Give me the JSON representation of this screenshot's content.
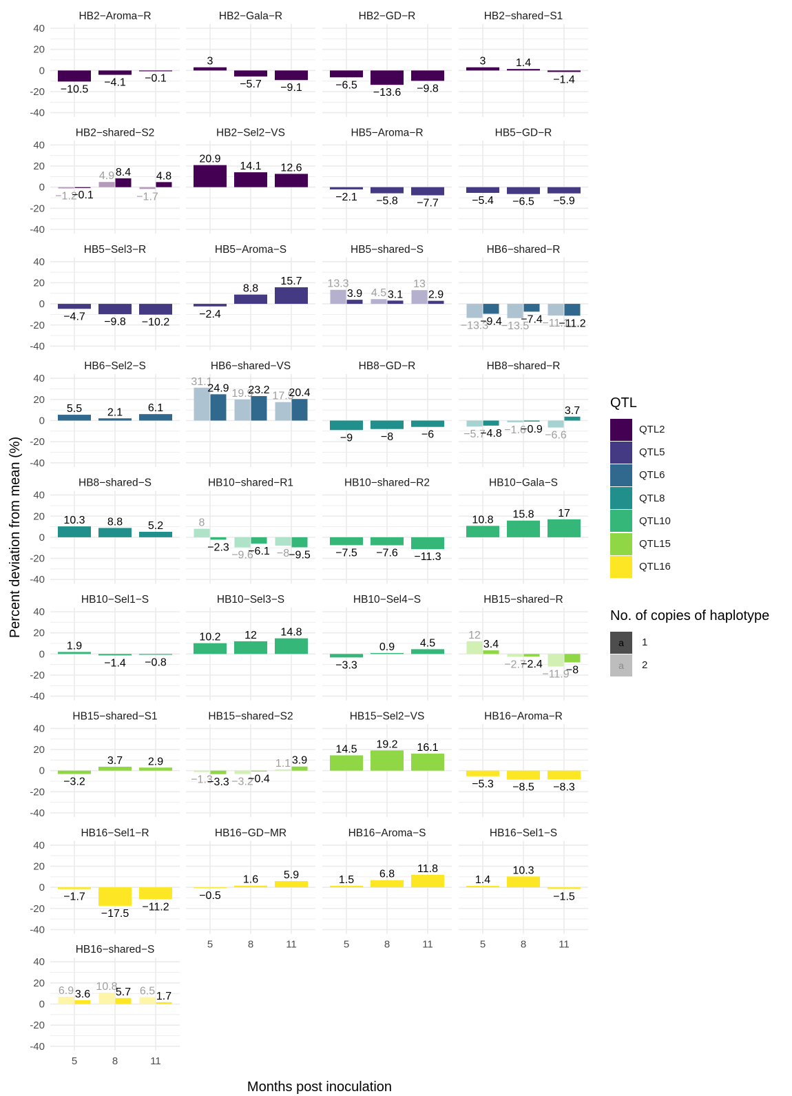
{
  "colors": {
    "QTL2": "#440154",
    "QTL5": "#443A83",
    "QTL6": "#31688E",
    "QTL8": "#21908C",
    "QTL10": "#35B779",
    "QTL15": "#8FD744",
    "QTL16": "#FDE725"
  },
  "legend": {
    "title": "QTL",
    "items": [
      "QTL2",
      "QTL5",
      "QTL6",
      "QTL8",
      "QTL10",
      "QTL15",
      "QTL16"
    ],
    "copies_title": "No. of copies of haplotype",
    "copies": [
      {
        "key": "1",
        "glyph": "a"
      },
      {
        "key": "2",
        "glyph": "a"
      }
    ]
  },
  "chart_data": {
    "type": "bar",
    "xlabel": "Months post inoculation",
    "ylabel": "Percent deviation from mean (%)",
    "ylim": [
      -40,
      40
    ],
    "yticks": [
      -40,
      -20,
      0,
      20,
      40
    ],
    "categories": [
      "5",
      "8",
      "11"
    ],
    "grid": true,
    "legend_position": "right",
    "panels": [
      {
        "title": "HB2−Aroma−R",
        "qtl": "QTL2",
        "c1": [
          -10.5,
          -4.1,
          -0.1
        ]
      },
      {
        "title": "HB2−Gala−R",
        "qtl": "QTL2",
        "c1": [
          3,
          -5.7,
          -9.1
        ]
      },
      {
        "title": "HB2−GD−R",
        "qtl": "QTL2",
        "c1": [
          -6.5,
          -13.6,
          -9.8
        ]
      },
      {
        "title": "HB2−shared−S1",
        "qtl": "QTL2",
        "c1": [
          3,
          1.4,
          -1.4
        ]
      },
      {
        "title": "HB2−shared−S2",
        "qtl": "QTL2",
        "c1": [
          -0.1,
          8.4,
          4.8
        ],
        "c2": [
          -1.2,
          4.9,
          -1.7
        ]
      },
      {
        "title": "HB2−Sel2−VS",
        "qtl": "QTL2",
        "c1": [
          20.9,
          14.1,
          12.6
        ]
      },
      {
        "title": "HB5−Aroma−R",
        "qtl": "QTL5",
        "c1": [
          -2.1,
          -5.8,
          -7.7
        ]
      },
      {
        "title": "HB5−GD−R",
        "qtl": "QTL5",
        "c1": [
          -5.4,
          -6.5,
          -5.9
        ]
      },
      {
        "title": "HB5−Sel3−R",
        "qtl": "QTL5",
        "c1": [
          -4.7,
          -9.8,
          -10.2
        ]
      },
      {
        "title": "HB5−Aroma−S",
        "qtl": "QTL5",
        "c1": [
          -2.4,
          8.8,
          15.7
        ]
      },
      {
        "title": "HB5−shared−S",
        "qtl": "QTL5",
        "c1": [
          3.9,
          3.1,
          2.9
        ],
        "c2": [
          13.3,
          4.5,
          13
        ]
      },
      {
        "title": "HB6−shared−R",
        "qtl": "QTL6",
        "c1": [
          -9.4,
          -7.4,
          -11.2
        ],
        "c2": [
          -13.3,
          -13.5,
          -11.1
        ]
      },
      {
        "title": "HB6−Sel2−S",
        "qtl": "QTL6",
        "c1": [
          5.5,
          2.1,
          6.1
        ]
      },
      {
        "title": "HB6−shared−VS",
        "qtl": "QTL6",
        "c1": [
          24.9,
          23.2,
          20.4
        ],
        "c2": [
          31.1,
          19.9,
          17.5
        ]
      },
      {
        "title": "HB8−GD−R",
        "qtl": "QTL8",
        "c1": [
          -9,
          -8,
          -6
        ]
      },
      {
        "title": "HB8−shared−R",
        "qtl": "QTL8",
        "c1": [
          -4.8,
          -0.9,
          3.7
        ],
        "c2": [
          -5.7,
          -1.6,
          -6.6
        ]
      },
      {
        "title": "HB8−shared−S",
        "qtl": "QTL8",
        "c1": [
          10.3,
          8.8,
          5.2
        ]
      },
      {
        "title": "HB10−shared−R1",
        "qtl": "QTL10",
        "c1": [
          -2.3,
          -6.1,
          -9.5
        ],
        "c2": [
          8,
          -9.6,
          -8
        ]
      },
      {
        "title": "HB10−shared−R2",
        "qtl": "QTL10",
        "c1": [
          -7.5,
          -7.6,
          -11.3
        ]
      },
      {
        "title": "HB10−Gala−S",
        "qtl": "QTL10",
        "c1": [
          10.8,
          15.8,
          17
        ]
      },
      {
        "title": "HB10−Sel1−S",
        "qtl": "QTL10",
        "c1": [
          1.9,
          -1.4,
          -0.8
        ]
      },
      {
        "title": "HB10−Sel3−S",
        "qtl": "QTL10",
        "c1": [
          10.2,
          12,
          14.8
        ]
      },
      {
        "title": "HB10−Sel4−S",
        "qtl": "QTL10",
        "c1": [
          -3.3,
          0.9,
          4.5
        ]
      },
      {
        "title": "HB15−shared−R",
        "qtl": "QTL15",
        "c1": [
          3.4,
          -2.4,
          -8
        ],
        "c2": [
          12,
          -2.7,
          -11.9
        ]
      },
      {
        "title": "HB15−shared−S1",
        "qtl": "QTL15",
        "c1": [
          -3.2,
          3.7,
          2.9
        ]
      },
      {
        "title": "HB15−shared−S2",
        "qtl": "QTL15",
        "c1": [
          -3.3,
          -0.4,
          3.9
        ],
        "c2": [
          -1.3,
          -3.2,
          1.1
        ]
      },
      {
        "title": "HB15−Sel2−VS",
        "qtl": "QTL15",
        "c1": [
          14.5,
          19.2,
          16.1
        ]
      },
      {
        "title": "HB16−Aroma−R",
        "qtl": "QTL16",
        "c1": [
          -5.3,
          -8.5,
          -8.3
        ]
      },
      {
        "title": "HB16−Sel1−R",
        "qtl": "QTL16",
        "c1": [
          -1.7,
          -17.5,
          -11.2
        ]
      },
      {
        "title": "HB16−GD−MR",
        "qtl": "QTL16",
        "c1": [
          -0.5,
          1.6,
          5.9
        ]
      },
      {
        "title": "HB16−Aroma−S",
        "qtl": "QTL16",
        "c1": [
          1.5,
          6.8,
          11.8
        ]
      },
      {
        "title": "HB16−Sel1−S",
        "qtl": "QTL16",
        "c1": [
          1.4,
          10.3,
          -1.5
        ]
      },
      {
        "title": "HB16−shared−S",
        "qtl": "QTL16",
        "c1": [
          3.6,
          5.7,
          1.7
        ],
        "c2": [
          6.9,
          10.8,
          6.5
        ]
      }
    ]
  }
}
